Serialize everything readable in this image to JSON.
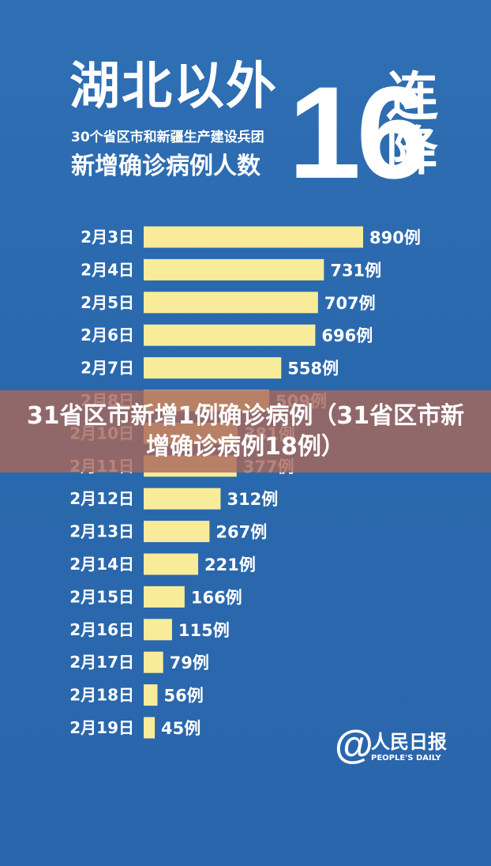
{
  "header": {
    "title": "湖北以外",
    "subtitle_line1": "30个省区市和新疆生产建设兵团",
    "subtitle_line2": "新增确诊病例人数",
    "big_number": "16",
    "big_word": "连降"
  },
  "overlay": {
    "headline": "31省区市新增1例确诊病例（31省区市新增确诊病例18例）"
  },
  "logo": {
    "brand_cn": "人民日报",
    "brand_en": "PEOPLE'S DAILY"
  },
  "colors": {
    "background": "#2c6aae",
    "bar": "#f8ec9a",
    "text": "#ffffff",
    "overlay_band": "#a8685c"
  },
  "chart_data": {
    "type": "bar",
    "orientation": "horizontal",
    "categories": [
      "2月3日",
      "2月4日",
      "2月5日",
      "2月6日",
      "2月7日",
      "2月8日",
      "2月10日",
      "2月11日",
      "2月12日",
      "2月13日",
      "2月14日",
      "2月15日",
      "2月16日",
      "2月17日",
      "2月18日",
      "2月19日"
    ],
    "values": [
      890,
      731,
      707,
      696,
      558,
      509,
      381,
      377,
      312,
      267,
      221,
      166,
      115,
      79,
      56,
      45
    ],
    "labels": [
      "890例",
      "731例",
      "707例",
      "696例",
      "558例",
      "509例",
      "381例",
      "377例",
      "312例",
      "267例",
      "221例",
      "166例",
      "115例",
      "79例",
      "56例",
      "45例"
    ],
    "xlim": [
      0,
      890
    ],
    "grid": false,
    "legend": "none"
  }
}
